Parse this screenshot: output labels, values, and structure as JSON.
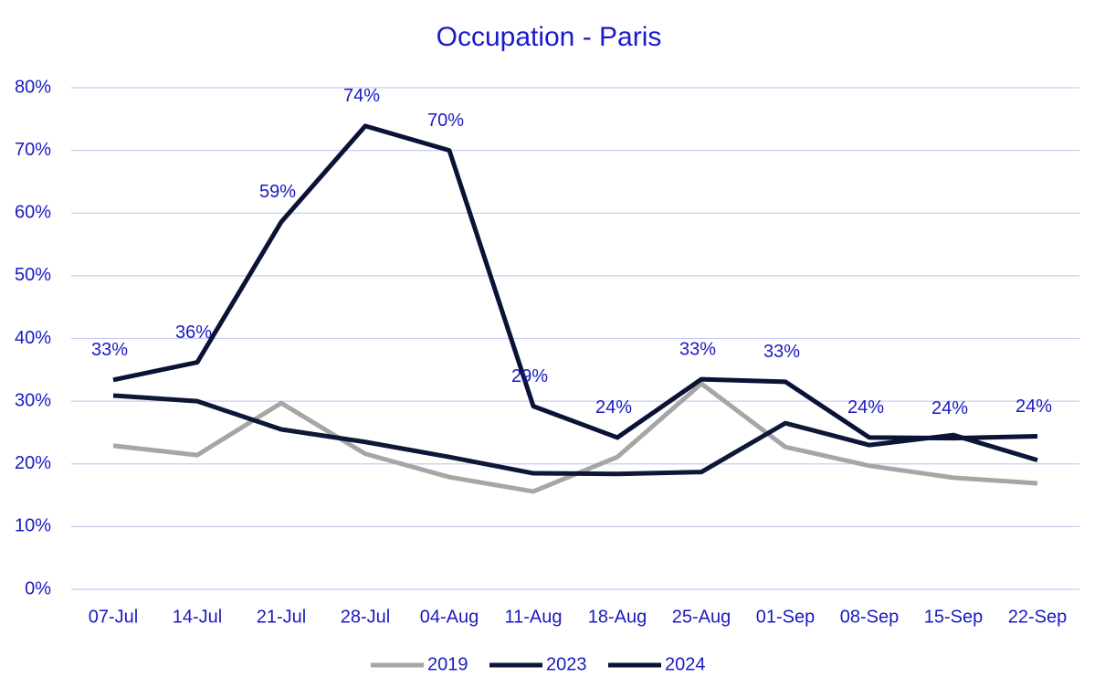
{
  "chart_data": {
    "type": "line",
    "title": "Occupation - Paris",
    "categories": [
      "07-Jul",
      "14-Jul",
      "21-Jul",
      "28-Jul",
      "04-Aug",
      "11-Aug",
      "18-Aug",
      "25-Aug",
      "01-Sep",
      "08-Sep",
      "15-Sep",
      "22-Sep"
    ],
    "series": [
      {
        "name": "2019",
        "color": "#a6a6a6",
        "values": [
          22.9,
          21.4,
          29.7,
          21.6,
          17.9,
          15.6,
          21.1,
          32.8,
          22.7,
          19.7,
          17.8,
          16.9
        ]
      },
      {
        "name": "2023",
        "color": "#0d1838",
        "values": [
          30.9,
          30.0,
          25.5,
          23.5,
          21.1,
          18.5,
          18.4,
          18.7,
          26.5,
          23.0,
          24.6,
          20.6
        ]
      },
      {
        "name": "2024",
        "color": "#0a1236",
        "values": [
          33.4,
          36.2,
          58.6,
          73.9,
          70.0,
          29.2,
          24.2,
          33.5,
          33.1,
          24.2,
          24.1,
          24.4
        ],
        "value_labels": [
          "33%",
          "36%",
          "59%",
          "74%",
          "70%",
          "29%",
          "24%",
          "33%",
          "33%",
          "24%",
          "24%",
          "24%"
        ]
      }
    ],
    "ylim": [
      0,
      80
    ],
    "yticks": [
      {
        "value": 0,
        "label": "0%"
      },
      {
        "value": 10,
        "label": "10%"
      },
      {
        "value": 20,
        "label": "20%"
      },
      {
        "value": 30,
        "label": "30%"
      },
      {
        "value": 40,
        "label": "40%"
      },
      {
        "value": 50,
        "label": "50%"
      },
      {
        "value": 60,
        "label": "60%"
      },
      {
        "value": 70,
        "label": "70%"
      },
      {
        "value": 80,
        "label": "80%"
      }
    ],
    "grid": true,
    "legend": "bottom"
  }
}
